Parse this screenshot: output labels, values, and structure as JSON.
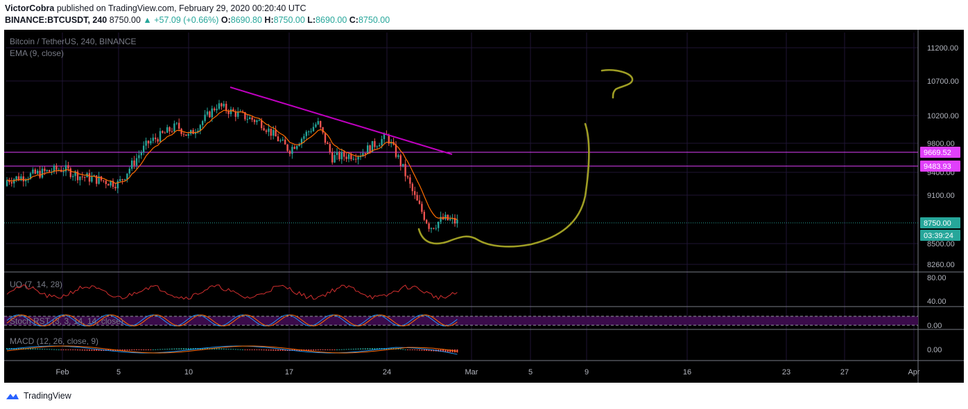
{
  "header": {
    "author": "VictorCobra",
    "published_text": "published on TradingView.com, February 29, 2020 00:20:40 UTC",
    "symbol": "BINANCE:BTCUSDT, 240",
    "last": "8750.00",
    "change": "▲ +57.09 (+0.66%)",
    "o_label": "O:",
    "o": "8690.80",
    "h_label": "H:",
    "h": "8750.00",
    "l_label": "L:",
    "l": "8690.00",
    "c_label": "C:",
    "c": "8750.00"
  },
  "chart": {
    "legend_title": "Bitcoin / TetherUS, 240, BINANCE",
    "ema_label": "EMA (9, close)",
    "uo_label": "UO (7, 14, 28)",
    "stoch_label": "Stoch RST (3, 3, 14, 14, close)",
    "macd_label": "MACD (12, 26, close, 9)",
    "price_axis": [
      "11200.00",
      "10700.00",
      "10200.00",
      "9800.00",
      "9400.00",
      "9100.00",
      "8500.00",
      "8260.00"
    ],
    "price_tags": {
      "upper_level": "9669.52",
      "lower_level": "9483.93",
      "last": "8750.00",
      "countdown": "03:39:24"
    },
    "uo_axis": [
      "80.00",
      "40.00"
    ],
    "stoch_axis": [
      "0.00"
    ],
    "macd_axis": [
      "0.00"
    ],
    "date_axis": [
      "Feb",
      "5",
      "10",
      "17",
      "24",
      "Mar",
      "5",
      "9",
      "16",
      "23",
      "27",
      "Apr"
    ],
    "annotation": "?"
  },
  "colors": {
    "background": "#000000",
    "up": "#26a69a",
    "down": "#ef5350",
    "ema": "#ff6d00",
    "trendline": "#c000c0",
    "hline": "#e040fb",
    "drawing": "#9e9d24"
  },
  "chart_data": {
    "type": "candlestick",
    "symbol": "BINANCE:BTCUSDT",
    "interval": "240",
    "ylim": [
      8200,
      11400
    ],
    "key_levels": [
      9669.52,
      9483.93
    ],
    "last_price": 8750.0,
    "approx_closes": {
      "x": [
        "Jan 31",
        "Feb 1",
        "Feb 3",
        "Feb 5",
        "Feb 7",
        "Feb 9",
        "Feb 10",
        "Feb 12",
        "Feb 13",
        "Feb 15",
        "Feb 17",
        "Feb 19",
        "Feb 20",
        "Feb 22",
        "Feb 24",
        "Feb 25",
        "Feb 26",
        "Feb 27",
        "Feb 28",
        "Feb 29"
      ],
      "y": [
        9300,
        9450,
        9350,
        9250,
        9800,
        10050,
        9900,
        10350,
        10250,
        10100,
        9700,
        10100,
        9600,
        9650,
        9900,
        9500,
        9050,
        8700,
        8800,
        8750
      ]
    },
    "indicators": [
      "EMA (9, close)",
      "UO (7, 14, 28)",
      "Stoch RST (3, 3, 14, 14, close)",
      "MACD (12, 26, close, 9)"
    ]
  }
}
